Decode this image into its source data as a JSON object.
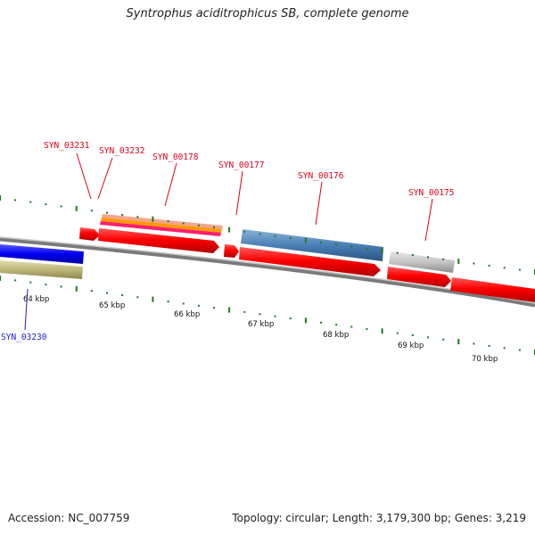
{
  "title": "Syntrophus aciditrophicus SB, complete genome",
  "footer": {
    "accession": "Accession: NC_007759",
    "summary": "Topology: circular; Length: 3,179,300 bp; Genes: 3,219"
  },
  "colors": {
    "cds": "#ff0000",
    "backbone": "#808080",
    "tick": "#1e7a1e",
    "label_red": "#e0001a",
    "label_blue": "#1a1ad6"
  },
  "scale_labels": [
    "64 kbp",
    "65 kbp",
    "66 kbp",
    "67 kbp",
    "68 kbp",
    "69 kbp",
    "70 kbp"
  ],
  "gene_labels": [
    {
      "name": "SYN_03231",
      "color": "red"
    },
    {
      "name": "SYN_03232",
      "color": "red"
    },
    {
      "name": "SYN_00178",
      "color": "red"
    },
    {
      "name": "SYN_00177",
      "color": "red"
    },
    {
      "name": "SYN_00176",
      "color": "red"
    },
    {
      "name": "SYN_00175",
      "color": "red"
    },
    {
      "name": "SYN_03230",
      "color": "blue"
    }
  ]
}
